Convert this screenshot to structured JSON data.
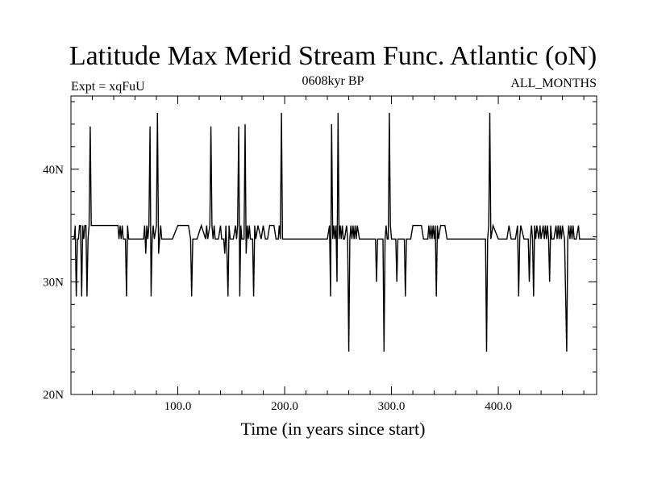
{
  "chart_data": {
    "type": "line",
    "title": "Latitude Max Merid Stream Func. Atlantic (oN)",
    "subtitle_left": "Expt = xqFuU",
    "subtitle_center": "0608kyr BP",
    "subtitle_right": "ALL_MONTHS",
    "xlabel": "Time (in years since start)",
    "ylabel": "",
    "xlim": [
      0,
      492
    ],
    "ylim": [
      20,
      46.5
    ],
    "x_ticks": [
      {
        "value": 100,
        "label": "100.0"
      },
      {
        "value": 200,
        "label": "200.0"
      },
      {
        "value": 300,
        "label": "300.0"
      },
      {
        "value": 400,
        "label": "400.0"
      }
    ],
    "y_ticks": [
      {
        "value": 20,
        "label": "20N"
      },
      {
        "value": 30,
        "label": "30N"
      },
      {
        "value": 40,
        "label": "40N"
      }
    ],
    "x_minor_step": 20,
    "y_minor_step": 2,
    "series": [
      {
        "color": "#000000",
        "points": [
          [
            1,
            33.8
          ],
          [
            3,
            33.8
          ],
          [
            4,
            35
          ],
          [
            5,
            28.7
          ],
          [
            6,
            33.8
          ],
          [
            7,
            33.8
          ],
          [
            8,
            35
          ],
          [
            9,
            35
          ],
          [
            10,
            28.7
          ],
          [
            11,
            35
          ],
          [
            12,
            33.8
          ],
          [
            13,
            35
          ],
          [
            14,
            35
          ],
          [
            15,
            28.7
          ],
          [
            16,
            33.8
          ],
          [
            17,
            35
          ],
          [
            18,
            43.8
          ],
          [
            19,
            35
          ],
          [
            20,
            35
          ],
          [
            30,
            35
          ],
          [
            40,
            35
          ],
          [
            44,
            35
          ],
          [
            45,
            33.8
          ],
          [
            46,
            35
          ],
          [
            47,
            33.8
          ],
          [
            48,
            35
          ],
          [
            49,
            33.8
          ],
          [
            50,
            33.8
          ],
          [
            51,
            33.8
          ],
          [
            52,
            28.7
          ],
          [
            53,
            35
          ],
          [
            54,
            33.8
          ],
          [
            55,
            33.8
          ],
          [
            60,
            33.8
          ],
          [
            68,
            33.8
          ],
          [
            69,
            35
          ],
          [
            70,
            32.5
          ],
          [
            71,
            35
          ],
          [
            72,
            33.8
          ],
          [
            73,
            35
          ],
          [
            74,
            43.8
          ],
          [
            75,
            28.7
          ],
          [
            76,
            33.8
          ],
          [
            77,
            35
          ],
          [
            78,
            33.8
          ],
          [
            80,
            35
          ],
          [
            81,
            45
          ],
          [
            82,
            32.5
          ],
          [
            83,
            33.8
          ],
          [
            84,
            35
          ],
          [
            85,
            33.8
          ],
          [
            88,
            33.8
          ],
          [
            95,
            33.8
          ],
          [
            100,
            35
          ],
          [
            110,
            35
          ],
          [
            112,
            33.8
          ],
          [
            113,
            28.7
          ],
          [
            114,
            33.8
          ],
          [
            118,
            33.8
          ],
          [
            122,
            35
          ],
          [
            126,
            33.8
          ],
          [
            127,
            35
          ],
          [
            128,
            33.8
          ],
          [
            130,
            35
          ],
          [
            131,
            43.8
          ],
          [
            132,
            35
          ],
          [
            133,
            33.8
          ],
          [
            134,
            35
          ],
          [
            135,
            33.8
          ],
          [
            138,
            33.8
          ],
          [
            140,
            35
          ],
          [
            141,
            33.8
          ],
          [
            143,
            33.8
          ],
          [
            144,
            32.5
          ],
          [
            145,
            35
          ],
          [
            146,
            32.5
          ],
          [
            147,
            28.7
          ],
          [
            148,
            35
          ],
          [
            149,
            33.8
          ],
          [
            150,
            33.8
          ],
          [
            152,
            33.8
          ],
          [
            154,
            35
          ],
          [
            155,
            33.8
          ],
          [
            156,
            35
          ],
          [
            157,
            43.8
          ],
          [
            158,
            28.7
          ],
          [
            159,
            35
          ],
          [
            160,
            33.8
          ],
          [
            162,
            33.8
          ],
          [
            163,
            44
          ],
          [
            164,
            32.5
          ],
          [
            165,
            35
          ],
          [
            166,
            33.8
          ],
          [
            167,
            35
          ],
          [
            168,
            33.8
          ],
          [
            170,
            33.8
          ],
          [
            171,
            28.7
          ],
          [
            172,
            35
          ],
          [
            173,
            33.8
          ],
          [
            175,
            35
          ],
          [
            178,
            33.8
          ],
          [
            180,
            35
          ],
          [
            182,
            33.8
          ],
          [
            184,
            33.8
          ],
          [
            186,
            35
          ],
          [
            190,
            35
          ],
          [
            192,
            33.8
          ],
          [
            194,
            33.8
          ],
          [
            195,
            35
          ],
          [
            196,
            33.8
          ],
          [
            197,
            45
          ],
          [
            198,
            33.8
          ],
          [
            200,
            33.8
          ],
          [
            210,
            33.8
          ],
          [
            220,
            33.8
          ],
          [
            230,
            33.8
          ],
          [
            235,
            33.8
          ],
          [
            240,
            33.8
          ],
          [
            242,
            35
          ],
          [
            243,
            28.7
          ],
          [
            244,
            44
          ],
          [
            245,
            33.8
          ],
          [
            246,
            35
          ],
          [
            247,
            33.8
          ],
          [
            248,
            35
          ],
          [
            249,
            30
          ],
          [
            250,
            45
          ],
          [
            251,
            33.8
          ],
          [
            252,
            35
          ],
          [
            253,
            33.8
          ],
          [
            254,
            35
          ],
          [
            255,
            33.8
          ],
          [
            256,
            33.8
          ],
          [
            258,
            35
          ],
          [
            259,
            33.8
          ],
          [
            260,
            23.8
          ],
          [
            261,
            33.8
          ],
          [
            262,
            35
          ],
          [
            263,
            33.8
          ],
          [
            264,
            35
          ],
          [
            265,
            33.8
          ],
          [
            266,
            35
          ],
          [
            267,
            33.8
          ],
          [
            268,
            35
          ],
          [
            270,
            33.8
          ],
          [
            280,
            33.8
          ],
          [
            285,
            33.8
          ],
          [
            286,
            30
          ],
          [
            287,
            33.8
          ],
          [
            290,
            33.8
          ],
          [
            292,
            33.8
          ],
          [
            293,
            23.8
          ],
          [
            294,
            33.8
          ],
          [
            295,
            35
          ],
          [
            296,
            33.8
          ],
          [
            297,
            33.8
          ],
          [
            298,
            45
          ],
          [
            299,
            35
          ],
          [
            300,
            33.8
          ],
          [
            304,
            33.8
          ],
          [
            305,
            30
          ],
          [
            306,
            33.8
          ],
          [
            310,
            33.8
          ],
          [
            312,
            33.8
          ],
          [
            313,
            28.7
          ],
          [
            314,
            33.8
          ],
          [
            318,
            33.8
          ],
          [
            320,
            35
          ],
          [
            328,
            35
          ],
          [
            330,
            33.8
          ],
          [
            334,
            33.8
          ],
          [
            335,
            35
          ],
          [
            336,
            33.8
          ],
          [
            337,
            35
          ],
          [
            338,
            33.8
          ],
          [
            339,
            35
          ],
          [
            340,
            33.8
          ],
          [
            341,
            35
          ],
          [
            342,
            28.7
          ],
          [
            343,
            35
          ],
          [
            344,
            33.8
          ],
          [
            346,
            35
          ],
          [
            350,
            35
          ],
          [
            352,
            33.8
          ],
          [
            360,
            33.8
          ],
          [
            370,
            33.8
          ],
          [
            380,
            33.8
          ],
          [
            388,
            33.8
          ],
          [
            389,
            23.8
          ],
          [
            390,
            33.8
          ],
          [
            391,
            35
          ],
          [
            392,
            45
          ],
          [
            393,
            33.8
          ],
          [
            395,
            35
          ],
          [
            400,
            33.8
          ],
          [
            408,
            33.8
          ],
          [
            410,
            35
          ],
          [
            412,
            33.8
          ],
          [
            416,
            33.8
          ],
          [
            418,
            35
          ],
          [
            419,
            28.7
          ],
          [
            420,
            33.8
          ],
          [
            421,
            35
          ],
          [
            424,
            33.8
          ],
          [
            428,
            33.8
          ],
          [
            429,
            30
          ],
          [
            430,
            33.8
          ],
          [
            431,
            35
          ],
          [
            432,
            33.8
          ],
          [
            433,
            28.7
          ],
          [
            434,
            35
          ],
          [
            435,
            33.8
          ],
          [
            436,
            35
          ],
          [
            438,
            33.8
          ],
          [
            439,
            35
          ],
          [
            440,
            33.8
          ],
          [
            442,
            35
          ],
          [
            443,
            33.8
          ],
          [
            444,
            35
          ],
          [
            445,
            33.8
          ],
          [
            446,
            35
          ],
          [
            447,
            33.8
          ],
          [
            448,
            30
          ],
          [
            449,
            35
          ],
          [
            450,
            33.8
          ],
          [
            452,
            33.8
          ],
          [
            454,
            35
          ],
          [
            455,
            33.8
          ],
          [
            456,
            35
          ],
          [
            457,
            33.8
          ],
          [
            458,
            35
          ],
          [
            459,
            33.8
          ],
          [
            460,
            35
          ],
          [
            462,
            33.8
          ],
          [
            464,
            23.8
          ],
          [
            465,
            33.8
          ],
          [
            466,
            35
          ],
          [
            467,
            33.8
          ],
          [
            468,
            35
          ],
          [
            469,
            33.8
          ],
          [
            470,
            35
          ],
          [
            471,
            33.8
          ],
          [
            473,
            33.8
          ],
          [
            475,
            35
          ],
          [
            476,
            33.8
          ],
          [
            477,
            33.8
          ],
          [
            480,
            33.8
          ],
          [
            491,
            33.8
          ]
        ]
      }
    ]
  }
}
